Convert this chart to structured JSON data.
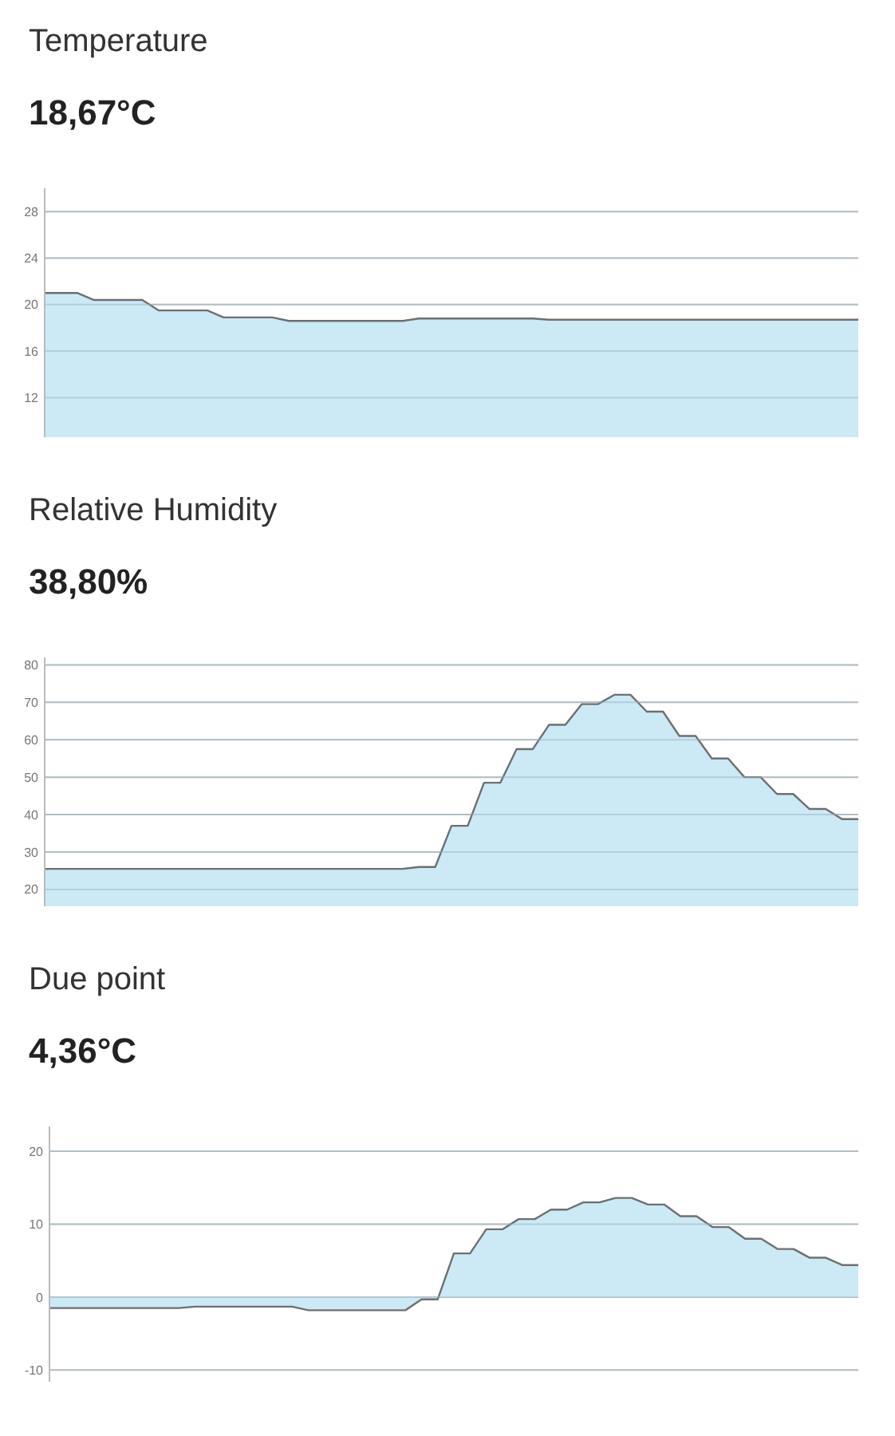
{
  "chart_data": [
    {
      "type": "area",
      "title": "Temperature",
      "subtitle": "18,67°C",
      "categories": [
        null,
        null,
        null,
        null,
        null,
        null,
        null,
        null,
        null,
        null,
        null,
        null,
        null,
        null,
        null,
        null,
        null,
        null,
        null,
        null,
        null,
        null,
        null,
        null,
        null,
        null,
        null,
        null,
        null,
        null,
        null,
        null,
        null,
        null,
        null,
        null,
        null,
        null,
        null,
        null,
        null,
        null,
        null,
        null,
        null,
        null,
        null,
        null,
        null,
        null,
        null
      ],
      "series": [
        {
          "color": "#cce9f6",
          "values": [
            21.0,
            21.0,
            21.0,
            20.4,
            20.4,
            20.4,
            20.4,
            19.5,
            19.5,
            19.5,
            19.5,
            18.9,
            18.9,
            18.9,
            18.9,
            18.6,
            18.6,
            18.6,
            18.6,
            18.6,
            18.6,
            18.6,
            18.6,
            18.8,
            18.8,
            18.8,
            18.8,
            18.8,
            18.8,
            18.8,
            18.8,
            18.7,
            18.7,
            18.7,
            18.7,
            18.7,
            18.7,
            18.7,
            18.7,
            18.7,
            18.7,
            18.7,
            18.7,
            18.7,
            18.7,
            18.7,
            18.7,
            18.7,
            18.7,
            18.7,
            18.7
          ]
        }
      ],
      "ylim": [
        8.6,
        30
      ],
      "yticks": [
        12,
        16,
        20,
        24,
        28
      ],
      "grid": "y",
      "tick_labels": "y"
    },
    {
      "type": "area",
      "title": "Relative Humidity",
      "subtitle": "38,80%",
      "categories": [
        null,
        null,
        null,
        null,
        null,
        null,
        null,
        null,
        null,
        null,
        null,
        null,
        null,
        null,
        null,
        null,
        null,
        null,
        null,
        null,
        null,
        null,
        null,
        null,
        null,
        null,
        null,
        null,
        null,
        null,
        null,
        null,
        null,
        null,
        null,
        null,
        null,
        null,
        null,
        null,
        null,
        null,
        null,
        null,
        null,
        null,
        null,
        null,
        null,
        null,
        null
      ],
      "series": [
        {
          "color": "#cce9f6",
          "values": [
            25.5,
            25.5,
            25.5,
            25.5,
            25.5,
            25.5,
            25.5,
            25.5,
            25.5,
            25.5,
            25.5,
            25.5,
            25.5,
            25.5,
            25.5,
            25.5,
            25.5,
            25.5,
            25.5,
            25.5,
            25.5,
            25.5,
            25.5,
            26,
            26,
            37,
            37,
            48.5,
            48.5,
            57.5,
            57.5,
            64,
            64,
            69.5,
            69.5,
            72,
            72,
            67.5,
            67.5,
            61,
            61,
            55,
            55,
            50,
            50,
            45.5,
            45.5,
            41.5,
            41.5,
            38.8,
            38.8
          ]
        }
      ],
      "ylim": [
        15.5,
        82
      ],
      "yticks": [
        20,
        30,
        40,
        50,
        60,
        70,
        80
      ],
      "grid": "y",
      "tick_labels": "y"
    },
    {
      "type": "area",
      "title": "Due point",
      "subtitle": "4,36°C",
      "categories": [
        null,
        null,
        null,
        null,
        null,
        null,
        null,
        null,
        null,
        null,
        null,
        null,
        null,
        null,
        null,
        null,
        null,
        null,
        null,
        null,
        null,
        null,
        null,
        null,
        null,
        null,
        null,
        null,
        null,
        null,
        null,
        null,
        null,
        null,
        null,
        null,
        null,
        null,
        null,
        null,
        null,
        null,
        null,
        null,
        null,
        null,
        null,
        null,
        null,
        null,
        null
      ],
      "series": [
        {
          "color": "#cce9f6",
          "values": [
            -1.5,
            -1.5,
            -1.5,
            -1.5,
            -1.5,
            -1.5,
            -1.5,
            -1.5,
            -1.5,
            -1.3,
            -1.3,
            -1.3,
            -1.3,
            -1.3,
            -1.3,
            -1.3,
            -1.8,
            -1.8,
            -1.8,
            -1.8,
            -1.8,
            -1.8,
            -1.8,
            -0.3,
            -0.3,
            6,
            6,
            9.3,
            9.3,
            10.7,
            10.7,
            12,
            12,
            13,
            13,
            13.6,
            13.6,
            12.7,
            12.7,
            11.1,
            11.1,
            9.6,
            9.6,
            8,
            8,
            6.6,
            6.6,
            5.4,
            5.4,
            4.4,
            4.4
          ]
        }
      ],
      "ylim": [
        -11.6,
        23.4
      ],
      "yticks": [
        -10,
        0,
        10,
        20
      ],
      "grid": "y",
      "tick_labels": "y"
    }
  ]
}
